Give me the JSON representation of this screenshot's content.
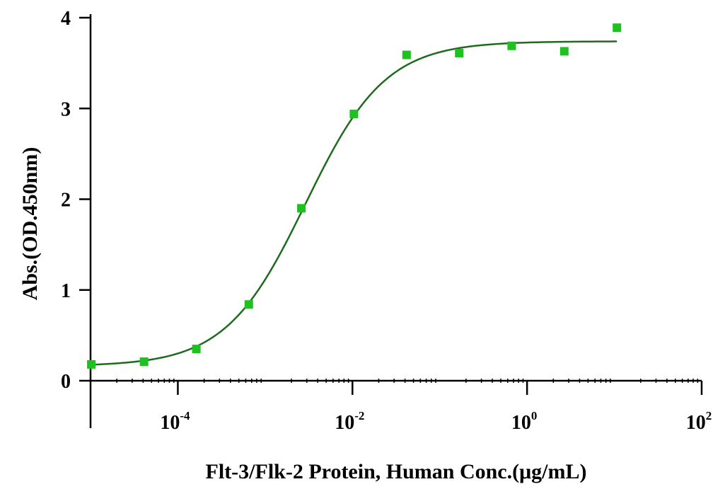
{
  "chart_data": {
    "type": "scatter",
    "xlabel": "Flt-3/Flk-2 Protein, Human Conc.(μg/mL)",
    "ylabel": "Abs.(OD.450nm)",
    "x_scale": "log",
    "xlim": [
      1e-05,
      100
    ],
    "ylim": [
      0,
      4
    ],
    "x_tick_labels": [
      {
        "value": 0.0001,
        "base": "10",
        "exp": "-4"
      },
      {
        "value": 0.01,
        "base": "10",
        "exp": "-2"
      },
      {
        "value": 1,
        "base": "10",
        "exp": "0"
      },
      {
        "value": 100,
        "base": "10",
        "exp": "2"
      }
    ],
    "y_ticks": [
      0,
      1,
      2,
      3,
      4
    ],
    "series": [
      {
        "x": [
          1.02e-05,
          4.1e-05,
          0.000163,
          0.00065,
          0.0026,
          0.0104,
          0.0417,
          0.167,
          0.667,
          2.67,
          10.7
        ],
        "y": [
          0.18,
          0.21,
          0.35,
          0.84,
          1.9,
          2.94,
          3.59,
          3.61,
          3.69,
          3.63,
          3.89
        ]
      }
    ],
    "fit": {
      "x_range": [
        1.02e-05,
        10.7
      ],
      "bottom": 0.16,
      "top": 3.74,
      "ec50": 0.0029,
      "hill": 0.95
    },
    "colors": {
      "points": "#1ec21e",
      "curve": "#1e6b1e",
      "axes": "#000000"
    },
    "grid": false,
    "legend": "none"
  }
}
